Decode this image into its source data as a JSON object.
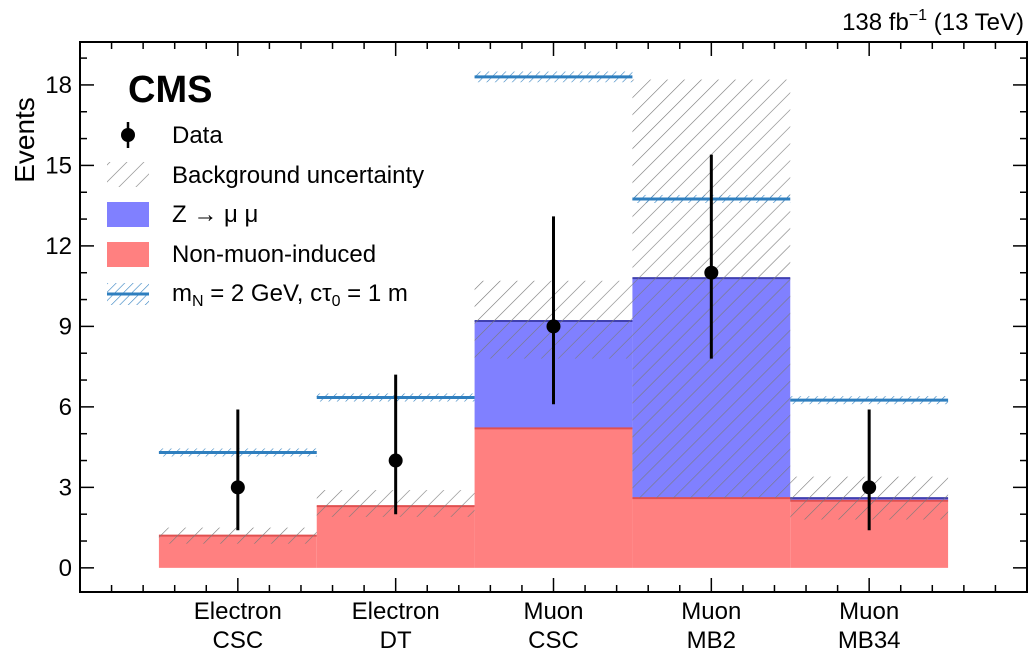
{
  "chart_data": {
    "type": "bar",
    "style": "stacked-histogram",
    "title": "",
    "experiment_label": "CMS",
    "lumi_label": "138 fb",
    "lumi_sup": "−1",
    "lumi_tail": " (13 TeV)",
    "ylabel": "Events",
    "xlabel": "",
    "ylim": [
      -0.9,
      19.6
    ],
    "yticks": [
      0,
      3,
      6,
      9,
      12,
      15,
      18
    ],
    "categories": [
      [
        "Electron",
        "CSC"
      ],
      [
        "Electron",
        "DT"
      ],
      [
        "Muon",
        "CSC"
      ],
      [
        "Muon",
        "MB2"
      ],
      [
        "Muon",
        "MB34"
      ]
    ],
    "series": [
      {
        "name": "Non-muon-induced",
        "kind": "stack",
        "color": "#ff8080",
        "values": [
          1.2,
          2.3,
          5.2,
          2.6,
          2.5
        ]
      },
      {
        "name": "Z → μ μ",
        "kind": "stack",
        "color": "#8080ff",
        "values": [
          0.0,
          0.0,
          4.0,
          8.2,
          0.1
        ]
      },
      {
        "name": "Background uncertainty",
        "kind": "band",
        "color": "#808080",
        "low": [
          0.9,
          1.9,
          7.8,
          2.6,
          1.8
        ],
        "high": [
          1.5,
          2.9,
          10.7,
          18.2,
          3.4
        ]
      },
      {
        "name": "Data",
        "kind": "points",
        "color": "#000000",
        "values": [
          3,
          4,
          9,
          11,
          3
        ],
        "err_low": [
          1.4,
          2.0,
          6.1,
          7.8,
          1.4
        ],
        "err_high": [
          5.9,
          7.2,
          13.1,
          15.4,
          5.9
        ]
      },
      {
        "name": "m_N = 2 GeV, cτ_0 = 1 m",
        "kind": "signal",
        "color": "#2f7fbf",
        "values": [
          4.3,
          6.35,
          18.3,
          13.75,
          6.25
        ],
        "half_width": [
          0.15,
          0.15,
          0.2,
          0.15,
          0.15
        ]
      }
    ],
    "legend": {
      "placement": "top-left",
      "entries": [
        {
          "key": "data",
          "label": "Data"
        },
        {
          "key": "bkg_unc",
          "label": "Background uncertainty"
        },
        {
          "key": "zmumu",
          "label": "Z → μ μ"
        },
        {
          "key": "nonmuon",
          "label": "Non-muon-induced"
        },
        {
          "key": "signal",
          "label_main": "m",
          "label_sub1": "N",
          "label_mid": " = 2 GeV, cτ",
          "label_sub2": "0",
          "label_tail": " = 1 m"
        }
      ]
    },
    "grid": false
  }
}
